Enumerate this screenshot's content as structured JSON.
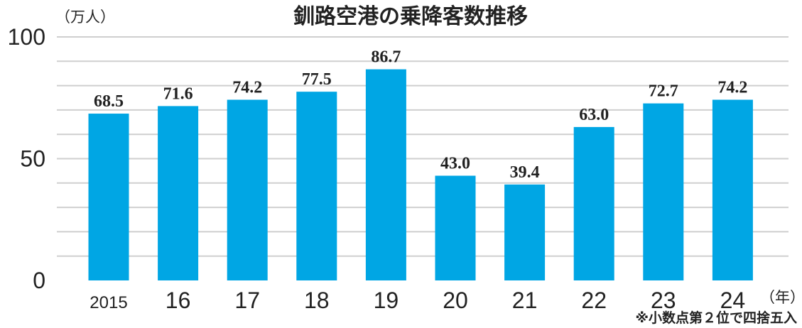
{
  "chart_data": {
    "type": "bar",
    "title": "釧路空港の乗降客数推移",
    "ylabel": "（万人）",
    "xlabel": "（年）",
    "categories": [
      "2015",
      "16",
      "17",
      "18",
      "19",
      "20",
      "21",
      "22",
      "23",
      "24"
    ],
    "values": [
      68.5,
      71.6,
      74.2,
      77.5,
      86.7,
      43.0,
      39.4,
      63.0,
      72.7,
      74.2
    ],
    "value_labels": [
      "68.5",
      "71.6",
      "74.2",
      "77.5",
      "86.7",
      "43.0",
      "39.4",
      "63.0",
      "72.7",
      "74.2"
    ],
    "ylim": [
      0,
      100
    ],
    "yticks": [
      "0",
      "50",
      "100"
    ],
    "grid": true,
    "note": "※小数点第２位で四捨五入"
  },
  "colors": {
    "bar": "#00a6e4",
    "grid": "#cfcfcf",
    "text": "#222222"
  }
}
